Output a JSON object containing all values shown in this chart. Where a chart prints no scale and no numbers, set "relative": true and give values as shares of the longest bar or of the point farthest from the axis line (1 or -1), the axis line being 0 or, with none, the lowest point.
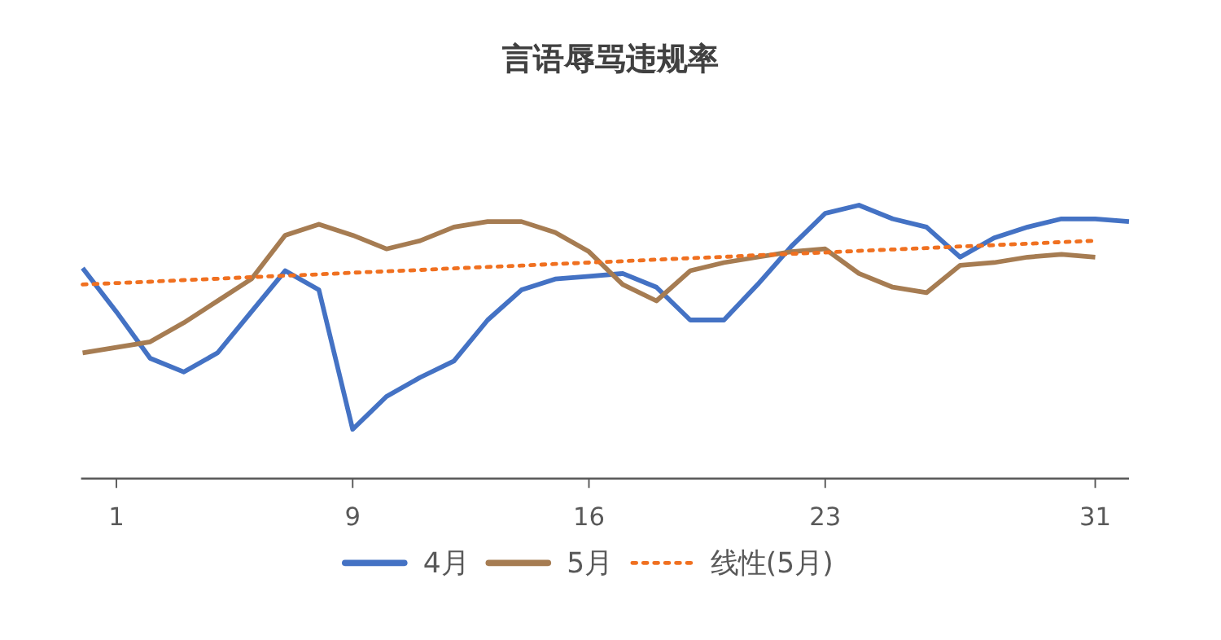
{
  "chart_data": {
    "type": "line",
    "title": "言语辱骂违规率",
    "relative": true,
    "legend": "bottom",
    "categories": [
      null,
      "1",
      null,
      null,
      null,
      null,
      null,
      null,
      "9",
      null,
      null,
      null,
      null,
      null,
      null,
      "16",
      null,
      null,
      null,
      null,
      null,
      null,
      "23",
      null,
      null,
      null,
      null,
      null,
      null,
      null,
      "31",
      null
    ],
    "series": [
      {
        "name": "4月",
        "color": "#4472c4",
        "line_style": "solid",
        "values": [
          0.77,
          0.61,
          0.44,
          0.39,
          0.46,
          0.61,
          0.76,
          0.69,
          0.18,
          0.3,
          0.37,
          0.43,
          0.58,
          0.69,
          0.73,
          0.74,
          0.75,
          0.7,
          0.58,
          0.58,
          0.71,
          0.85,
          0.97,
          1,
          0.95,
          0.92,
          0.81,
          0.88,
          0.92,
          0.95,
          0.95,
          0.94
        ]
      },
      {
        "name": "5月",
        "color": "#a67c52",
        "line_style": "solid",
        "values": [
          0.46,
          0.48,
          0.5,
          0.57,
          0.65,
          0.73,
          0.89,
          0.93,
          0.89,
          0.84,
          0.87,
          0.92,
          0.94,
          0.94,
          0.9,
          0.83,
          0.71,
          0.65,
          0.76,
          0.79,
          0.81,
          0.83,
          0.84,
          0.75,
          0.7,
          0.68,
          0.78,
          0.79,
          0.81,
          0.82,
          0.81,
          null
        ]
      },
      {
        "name": "线性(5月)",
        "color": "#f07020",
        "line_style": "dotted",
        "values": [
          0.71,
          0.715,
          0.72,
          0.726,
          0.731,
          0.737,
          0.742,
          0.747,
          0.753,
          0.758,
          0.763,
          0.769,
          0.774,
          0.779,
          0.785,
          0.79,
          0.795,
          0.801,
          0.806,
          0.811,
          0.817,
          0.822,
          0.827,
          0.833,
          0.838,
          0.843,
          0.849,
          0.854,
          0.859,
          0.865,
          0.87,
          null
        ]
      }
    ]
  }
}
